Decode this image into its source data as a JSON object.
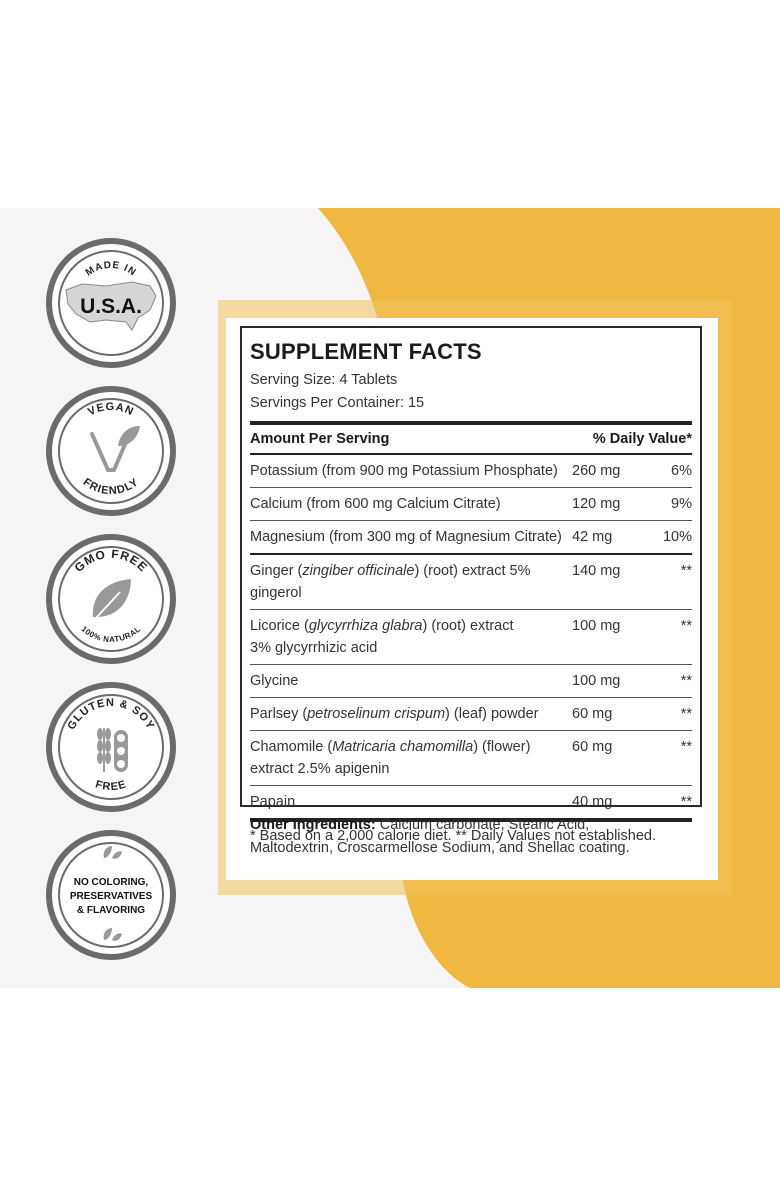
{
  "badges": [
    {
      "id": "made-in-usa",
      "top_text": "MADE IN",
      "center_text": "U.S.A.",
      "icon": "usa-map-icon"
    },
    {
      "id": "vegan",
      "top_text": "VEGAN",
      "bottom_text": "FRIENDLY",
      "icon": "vegan-v-leaf-icon"
    },
    {
      "id": "gmo-free",
      "top_text": "GMO FREE",
      "bottom_text": "100% NATURAL",
      "icon": "leaf-icon"
    },
    {
      "id": "gluten-soy-free",
      "top_text": "GLUTEN & SOY",
      "bottom_text": "FREE",
      "icon": "wheat-soy-icon"
    },
    {
      "id": "no-coloring",
      "lines": [
        "NO COLORING,",
        "PRESERVATIVES",
        "& FLAVORING"
      ],
      "icon": "leaves-icon"
    }
  ],
  "facts": {
    "title": "SUPPLEMENT FACTS",
    "serving_size": "Serving Size: 4 Tablets",
    "servings_per_container": "Servings Per Container: 15",
    "header": {
      "name": "Amount Per Serving",
      "dv": "% Daily Value*"
    },
    "rows": [
      {
        "pre": "Potassium (from 900 mg Potassium Phosphate)",
        "ital": "",
        "post": "",
        "line2": "",
        "amt": "260 mg",
        "dv": "6%"
      },
      {
        "pre": "Calcium (from 600 mg Calcium Citrate)",
        "ital": "",
        "post": "",
        "line2": "",
        "amt": "120 mg",
        "dv": "9%"
      },
      {
        "pre": "Magnesium (from 300 mg of Magnesium Citrate)",
        "ital": "",
        "post": "",
        "line2": "",
        "amt": "42 mg",
        "dv": "10%"
      },
      {
        "pre": "Ginger (",
        "ital": "zingiber officinale",
        "post": ") (root) extract 5% gingerol",
        "line2": "",
        "amt": "140 mg",
        "dv": "**"
      },
      {
        "pre": "Licorice (",
        "ital": "glycyrrhiza glabra",
        "post": ") (root) extract",
        "line2": "3% glycyrrhizic acid",
        "amt": "100 mg",
        "dv": "**"
      },
      {
        "pre": "Glycine",
        "ital": "",
        "post": "",
        "line2": "",
        "amt": "100 mg",
        "dv": "**"
      },
      {
        "pre": "Parlsey (",
        "ital": "petroselinum crispum",
        "post": ") (leaf) powder",
        "line2": "",
        "amt": "60 mg",
        "dv": "**"
      },
      {
        "pre": "Chamomile (",
        "ital": "Matricaria chamomilla",
        "post": ") (flower)",
        "line2": "extract 2.5% apigenin",
        "amt": "60 mg",
        "dv": "**"
      },
      {
        "pre": "Papain",
        "ital": "",
        "post": "",
        "line2": "",
        "amt": "40 mg",
        "dv": "**"
      }
    ],
    "footnote": "* Based on a 2,000 calorie diet. ** Daily Values not established."
  },
  "other_ingredients": {
    "label": "Other Ingredients:",
    "text": " Calcium carbonate, Stearic Acid, Maltodextrin, Croscarmellose Sodium, and Shellac coating."
  },
  "colors": {
    "yellow": "#f0b840",
    "badge_grey": "#6b6b6b",
    "background": "#f6f4f4"
  }
}
